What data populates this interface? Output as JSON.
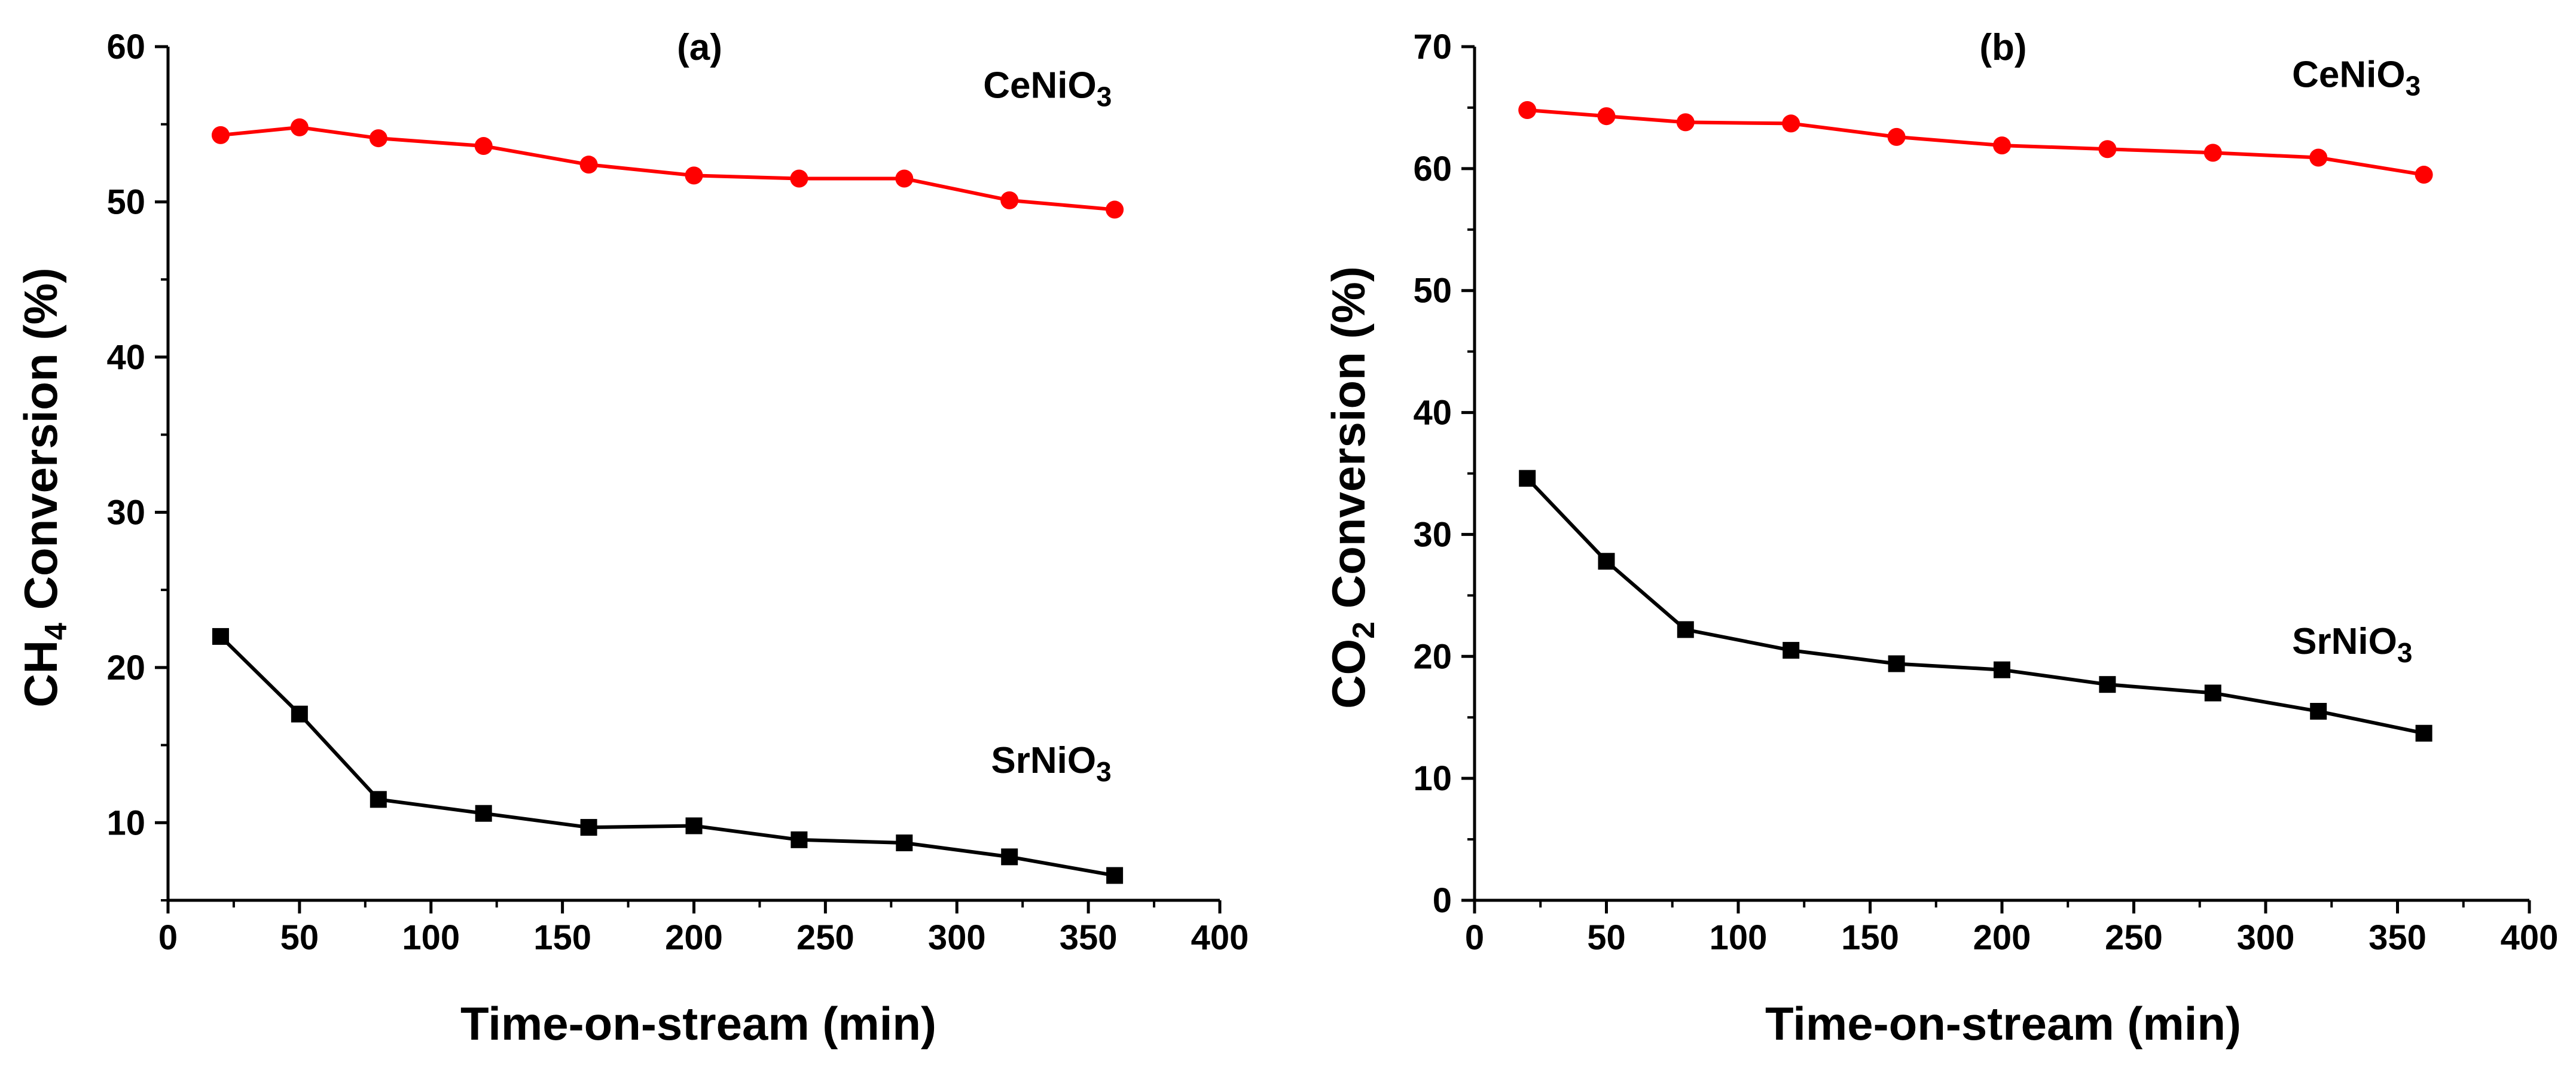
{
  "chart_data": [
    {
      "type": "line",
      "title": "(a)",
      "xlabel": "Time-on-stream (min)",
      "ylabel": {
        "main": "CH",
        "sub": "4",
        "rest": " Conversion (%)"
      },
      "xlim": [
        0,
        400
      ],
      "ylim": [
        5,
        60
      ],
      "xticks": [
        0,
        50,
        100,
        150,
        200,
        250,
        300,
        350,
        400
      ],
      "yticks": [
        10,
        20,
        30,
        40,
        50,
        60
      ],
      "grid": false,
      "series": [
        {
          "name": "CeNiO3",
          "label": {
            "main": "CeNiO",
            "sub": "3"
          },
          "color": "#ff0000",
          "marker": "circle",
          "x": [
            20,
            50,
            80,
            120,
            160,
            200,
            240,
            280,
            320,
            360
          ],
          "y": [
            54.3,
            54.8,
            54.1,
            53.6,
            52.4,
            51.7,
            51.5,
            51.5,
            50.1,
            49.5
          ],
          "label_anchor": {
            "x": 310,
            "y": 56.7
          }
        },
        {
          "name": "SrNiO3",
          "label": {
            "main": "SrNiO",
            "sub": "3"
          },
          "color": "#000000",
          "marker": "square",
          "x": [
            20,
            50,
            80,
            120,
            160,
            200,
            240,
            280,
            320,
            360
          ],
          "y": [
            22.0,
            17.0,
            11.5,
            10.6,
            9.7,
            9.8,
            8.9,
            8.7,
            7.8,
            6.6
          ],
          "label_anchor": {
            "x": 313,
            "y": 13.2
          }
        }
      ]
    },
    {
      "type": "line",
      "title": "(b)",
      "xlabel": "Time-on-stream (min)",
      "ylabel": {
        "main": "CO",
        "sub": "2",
        "rest": " Conversion (%)"
      },
      "xlim": [
        0,
        400
      ],
      "ylim": [
        0,
        70
      ],
      "xticks": [
        0,
        50,
        100,
        150,
        200,
        250,
        300,
        350,
        400
      ],
      "yticks": [
        0,
        10,
        20,
        30,
        40,
        50,
        60,
        70
      ],
      "grid": false,
      "series": [
        {
          "name": "CeNiO3",
          "label": {
            "main": "CeNiO",
            "sub": "3"
          },
          "color": "#ff0000",
          "marker": "circle",
          "x": [
            20,
            50,
            80,
            120,
            160,
            200,
            240,
            280,
            320,
            360
          ],
          "y": [
            64.8,
            64.3,
            63.8,
            63.7,
            62.6,
            61.9,
            61.6,
            61.3,
            60.9,
            59.5
          ],
          "label_anchor": {
            "x": 310,
            "y": 66.7
          }
        },
        {
          "name": "SrNiO3",
          "label": {
            "main": "SrNiO",
            "sub": "3"
          },
          "color": "#000000",
          "marker": "square",
          "x": [
            20,
            50,
            80,
            120,
            160,
            200,
            240,
            280,
            320,
            360
          ],
          "y": [
            34.6,
            27.8,
            22.2,
            20.5,
            19.4,
            18.9,
            17.7,
            17.0,
            15.5,
            13.7
          ],
          "label_anchor": {
            "x": 310,
            "y": 20.2
          }
        }
      ]
    }
  ]
}
